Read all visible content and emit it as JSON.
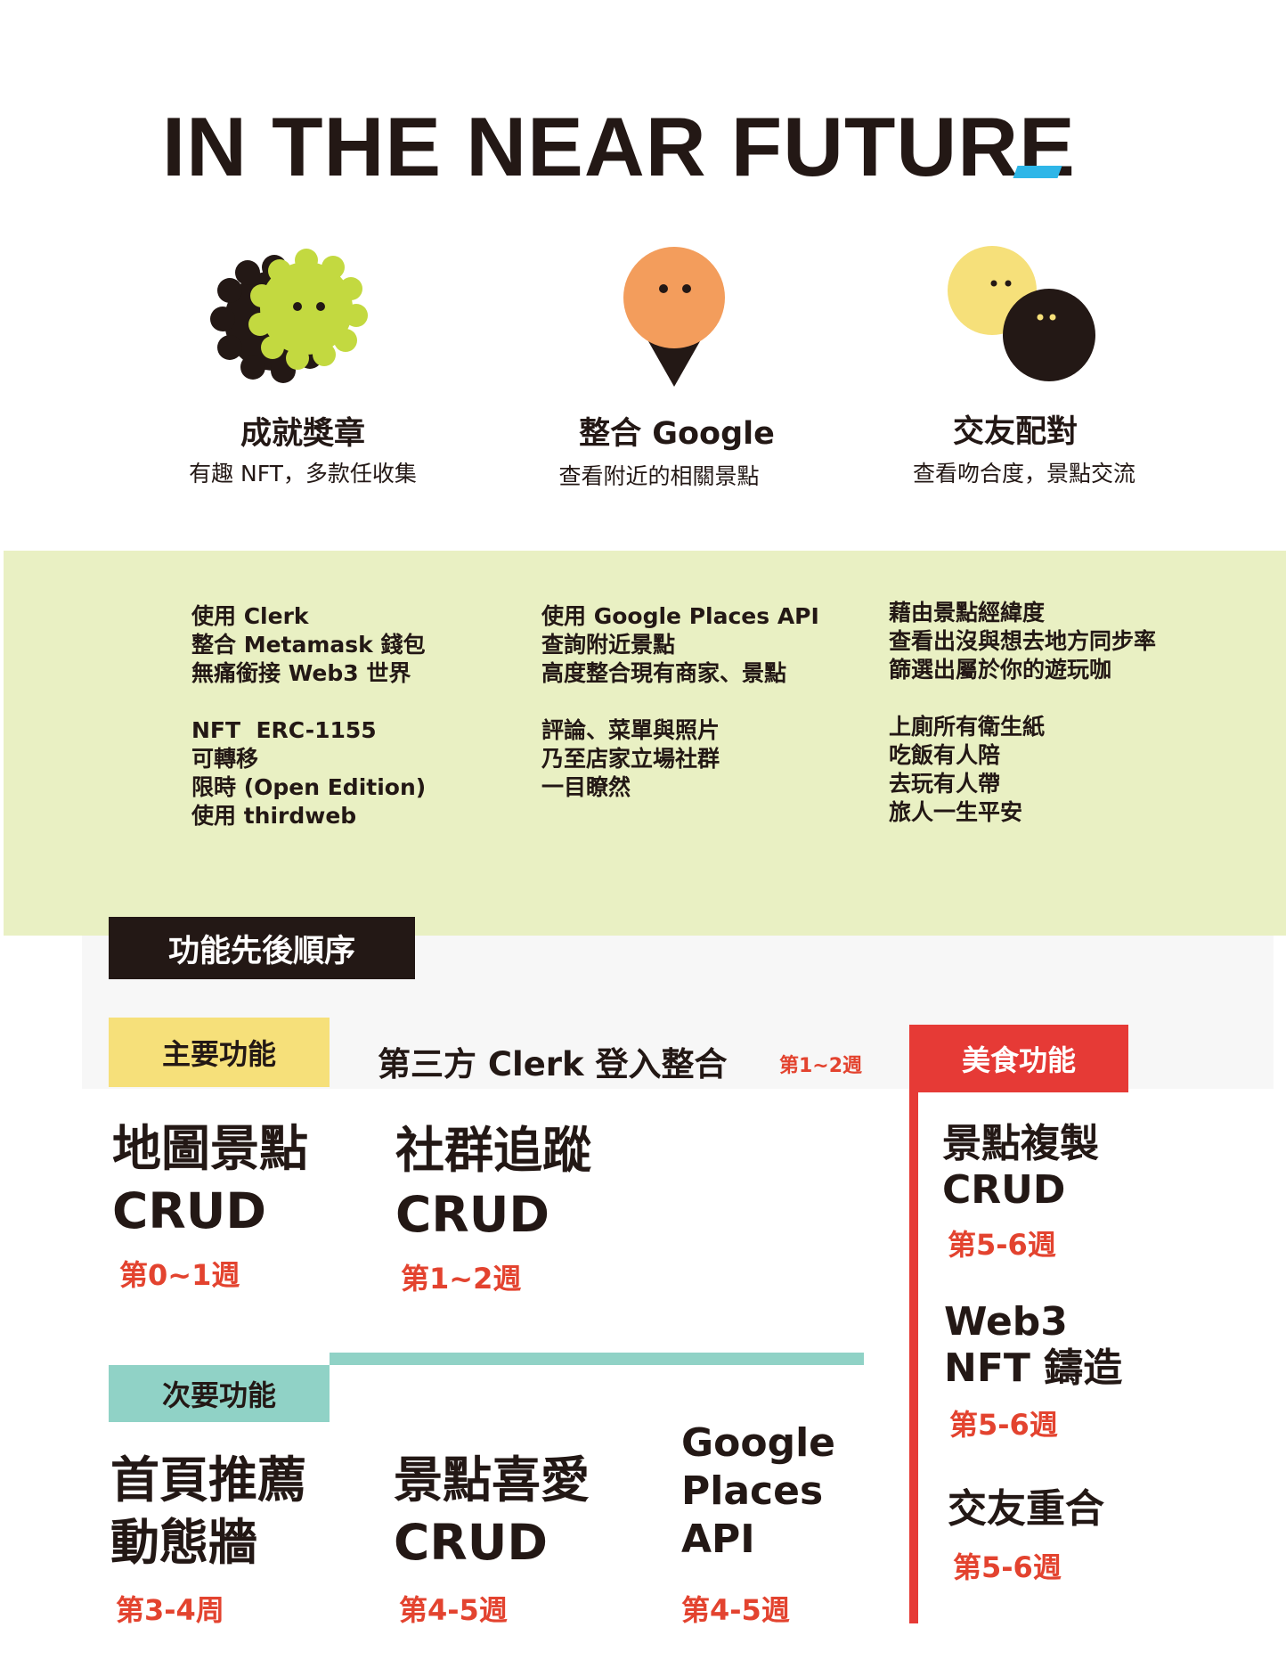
{
  "title": "IN THE NEAR FUTURE",
  "features": [
    {
      "icon": "achievement-badge-icon",
      "heading": "成就獎章",
      "subtitle": "有趣 NFT，多款任收集"
    },
    {
      "icon": "map-pin-icon",
      "heading": "整合 Google",
      "subtitle": "查看附近的相關景點"
    },
    {
      "icon": "chat-bubbles-icon",
      "heading": "交友配對",
      "subtitle": "查看吻合度，景點交流"
    }
  ],
  "details": {
    "col1": "使用 Clerk\n整合 Metamask 錢包\n無痛銜接 Web3 世界\n\nNFT  ERC-1155\n可轉移\n限時 (Open Edition)\n使用 thirdweb",
    "col2": "使用 Google Places API\n查詢附近景點\n高度整合現有商家、景點\n\n評論、菜單與照片\n乃至店家立場社群\n一目瞭然",
    "col3": "藉由景點經緯度\n查看出沒與想去地方同步率\n篩選出屬於你的遊玩咖\n\n上廁所有衛生紙\n吃飯有人陪\n去玩有人帶\n旅人一生平安"
  },
  "order_label": "功能先後順序",
  "primary": {
    "tag": "主要功能",
    "clerk": "第三方 Clerk 登入整合",
    "clerk_week": "第1~2週",
    "items": [
      {
        "line1": "地圖景點",
        "line2": "CRUD",
        "week": "第0~1週"
      },
      {
        "line1": "社群追蹤",
        "line2": "CRUD",
        "week": "第1~2週"
      }
    ]
  },
  "secondary": {
    "tag": "次要功能",
    "items": [
      {
        "line1": "首頁推薦",
        "line2": "動態牆",
        "week": "第3-4周"
      },
      {
        "line1": "景點喜愛",
        "line2": "CRUD",
        "week": "第4-5週"
      },
      {
        "line1": "Google",
        "line2": "Places",
        "line3": "API",
        "week": "第4-5週"
      }
    ]
  },
  "food": {
    "tag": "美食功能",
    "items": [
      {
        "line1": "景點複製",
        "line2": "CRUD",
        "week": "第5-6週"
      },
      {
        "line1": "Web3",
        "line2": "NFT 鑄造",
        "week": "第5-6週"
      },
      {
        "line1": "交友重合",
        "week": "第5-6週"
      }
    ]
  },
  "colors": {
    "ink": "#231815",
    "accent_red": "#e3432f",
    "lime": "#c3d940",
    "orange": "#f39d5c",
    "yellow": "#f6e07a",
    "teal": "#90d2c6",
    "panel_green": "#e9f0c3",
    "title_accent": "#2eb6e8"
  }
}
